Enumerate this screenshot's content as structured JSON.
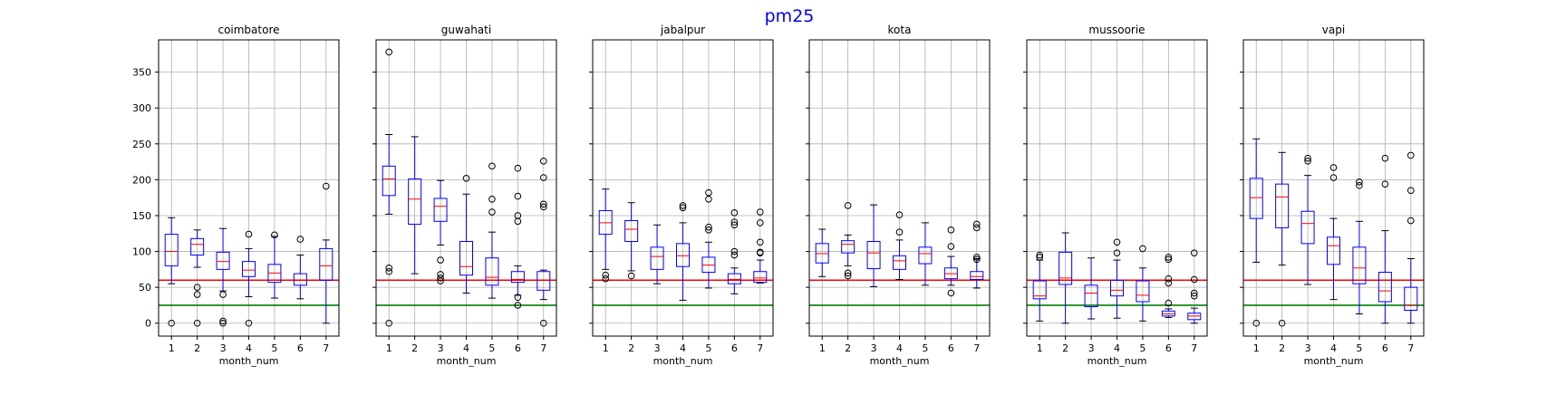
{
  "figure": {
    "title": "pm25",
    "title_color": "#0000ff"
  },
  "chart_data": {
    "type": "boxplot",
    "shared_y": true,
    "ylim": [
      -18,
      395
    ],
    "yticks": [
      0,
      50,
      100,
      150,
      200,
      250,
      300,
      350
    ],
    "xticks": [
      "1",
      "2",
      "3",
      "4",
      "5",
      "6",
      "7"
    ],
    "xlabel": "month_num",
    "grid": true,
    "reference_lines": [
      {
        "y": 60,
        "color": "#ff0000"
      },
      {
        "y": 25,
        "color": "#008000"
      }
    ],
    "colors": {
      "box": "#0000ff",
      "median": "#ff0000",
      "flier": "#000000",
      "grid": "#b0b0b0"
    },
    "panels": [
      {
        "title": "coimbatore",
        "boxes": [
          {
            "month": 1,
            "q1": 80,
            "median": 100,
            "q3": 124,
            "whisker_low": 55,
            "whisker_high": 147,
            "fliers": [
              0
            ]
          },
          {
            "month": 2,
            "q1": 95,
            "median": 110,
            "q3": 118,
            "whisker_low": 78,
            "whisker_high": 130,
            "fliers": [
              50,
              40,
              0
            ]
          },
          {
            "month": 3,
            "q1": 75,
            "median": 86,
            "q3": 99,
            "whisker_low": 45,
            "whisker_high": 132,
            "fliers": [
              40,
              3,
              0
            ]
          },
          {
            "month": 4,
            "q1": 65,
            "median": 74,
            "q3": 86,
            "whisker_low": 37,
            "whisker_high": 104,
            "fliers": [
              124,
              0
            ]
          },
          {
            "month": 5,
            "q1": 57,
            "median": 70,
            "q3": 82,
            "whisker_low": 35,
            "whisker_high": 121,
            "fliers": [
              123
            ]
          },
          {
            "month": 6,
            "q1": 53,
            "median": 60,
            "q3": 69,
            "whisker_low": 34,
            "whisker_high": 95,
            "fliers": [
              117
            ]
          },
          {
            "month": 7,
            "q1": 60,
            "median": 80,
            "q3": 104,
            "whisker_low": 0,
            "whisker_high": 116,
            "fliers": [
              191
            ]
          }
        ]
      },
      {
        "title": "guwahati",
        "boxes": [
          {
            "month": 1,
            "q1": 178,
            "median": 201,
            "q3": 219,
            "whisker_low": 152,
            "whisker_high": 263,
            "fliers": [
              378,
              77,
              72,
              0
            ]
          },
          {
            "month": 2,
            "q1": 138,
            "median": 173,
            "q3": 201,
            "whisker_low": 69,
            "whisker_high": 260,
            "fliers": []
          },
          {
            "month": 3,
            "q1": 142,
            "median": 163,
            "q3": 174,
            "whisker_low": 109,
            "whisker_high": 199,
            "fliers": [
              88,
              68,
              63,
              59
            ]
          },
          {
            "month": 4,
            "q1": 67,
            "median": 79,
            "q3": 114,
            "whisker_low": 42,
            "whisker_high": 180,
            "fliers": [
              202
            ]
          },
          {
            "month": 5,
            "q1": 53,
            "median": 64,
            "q3": 91,
            "whisker_low": 35,
            "whisker_high": 127,
            "fliers": [
              219,
              173,
              155
            ]
          },
          {
            "month": 6,
            "q1": 57,
            "median": 61,
            "q3": 72,
            "whisker_low": 39,
            "whisker_high": 80,
            "fliers": [
              216,
              177,
              150,
              142,
              36,
              25
            ]
          },
          {
            "month": 7,
            "q1": 46,
            "median": 60,
            "q3": 72,
            "whisker_low": 33,
            "whisker_high": 74,
            "fliers": [
              226,
              203,
              166,
              162,
              0
            ]
          }
        ]
      },
      {
        "title": "jabalpur",
        "boxes": [
          {
            "month": 1,
            "q1": 124,
            "median": 140,
            "q3": 157,
            "whisker_low": 75,
            "whisker_high": 187,
            "fliers": [
              67,
              62
            ]
          },
          {
            "month": 2,
            "q1": 114,
            "median": 131,
            "q3": 143,
            "whisker_low": 73,
            "whisker_high": 168,
            "fliers": [
              66
            ]
          },
          {
            "month": 3,
            "q1": 75,
            "median": 93,
            "q3": 106,
            "whisker_low": 55,
            "whisker_high": 137,
            "fliers": []
          },
          {
            "month": 4,
            "q1": 79,
            "median": 94,
            "q3": 111,
            "whisker_low": 32,
            "whisker_high": 140,
            "fliers": [
              164,
              161
            ]
          },
          {
            "month": 5,
            "q1": 71,
            "median": 81,
            "q3": 92,
            "whisker_low": 49,
            "whisker_high": 113,
            "fliers": [
              182,
              173,
              134,
              130
            ]
          },
          {
            "month": 6,
            "q1": 55,
            "median": 61,
            "q3": 69,
            "whisker_low": 41,
            "whisker_high": 77,
            "fliers": [
              154,
              141,
              137,
              100,
              95
            ]
          },
          {
            "month": 7,
            "q1": 57,
            "median": 63,
            "q3": 72,
            "whisker_low": 56,
            "whisker_high": 88,
            "fliers": [
              155,
              140,
              113,
              99,
              98
            ]
          }
        ]
      },
      {
        "title": "kota",
        "boxes": [
          {
            "month": 1,
            "q1": 84,
            "median": 97,
            "q3": 111,
            "whisker_low": 65,
            "whisker_high": 131,
            "fliers": []
          },
          {
            "month": 2,
            "q1": 98,
            "median": 110,
            "q3": 115,
            "whisker_low": 80,
            "whisker_high": 123,
            "fliers": [
              164,
              70,
              66
            ]
          },
          {
            "month": 3,
            "q1": 76,
            "median": 98,
            "q3": 114,
            "whisker_low": 51,
            "whisker_high": 165,
            "fliers": []
          },
          {
            "month": 4,
            "q1": 75,
            "median": 87,
            "q3": 94,
            "whisker_low": 61,
            "whisker_high": 116,
            "fliers": [
              151,
              127
            ]
          },
          {
            "month": 5,
            "q1": 83,
            "median": 97,
            "q3": 106,
            "whisker_low": 53,
            "whisker_high": 140,
            "fliers": []
          },
          {
            "month": 6,
            "q1": 62,
            "median": 69,
            "q3": 77,
            "whisker_low": 53,
            "whisker_high": 93,
            "fliers": [
              130,
              107,
              42
            ]
          },
          {
            "month": 7,
            "q1": 61,
            "median": 65,
            "q3": 72,
            "whisker_low": 49,
            "whisker_high": 90,
            "fliers": [
              138,
              133,
              92,
              89
            ]
          }
        ]
      },
      {
        "title": "mussoorie",
        "boxes": [
          {
            "month": 1,
            "q1": 34,
            "median": 38,
            "q3": 59,
            "whisker_low": 3,
            "whisker_high": 88,
            "fliers": [
              95,
              92
            ]
          },
          {
            "month": 2,
            "q1": 54,
            "median": 63,
            "q3": 99,
            "whisker_low": 0,
            "whisker_high": 126,
            "fliers": []
          },
          {
            "month": 3,
            "q1": 23,
            "median": 42,
            "q3": 53,
            "whisker_low": 6,
            "whisker_high": 91,
            "fliers": []
          },
          {
            "month": 4,
            "q1": 38,
            "median": 46,
            "q3": 60,
            "whisker_low": 7,
            "whisker_high": 88,
            "fliers": [
              113,
              98
            ]
          },
          {
            "month": 5,
            "q1": 30,
            "median": 39,
            "q3": 59,
            "whisker_low": 3,
            "whisker_high": 77,
            "fliers": [
              104
            ]
          },
          {
            "month": 6,
            "q1": 10,
            "median": 13,
            "q3": 17,
            "whisker_low": 8,
            "whisker_high": 20,
            "fliers": [
              92,
              89,
              62,
              56,
              28
            ]
          },
          {
            "month": 7,
            "q1": 5,
            "median": 10,
            "q3": 14,
            "whisker_low": 0,
            "whisker_high": 21,
            "fliers": [
              98,
              61,
              42,
              38
            ]
          }
        ]
      },
      {
        "title": "vapi",
        "boxes": [
          {
            "month": 1,
            "q1": 146,
            "median": 175,
            "q3": 202,
            "whisker_low": 85,
            "whisker_high": 257,
            "fliers": [
              0
            ]
          },
          {
            "month": 2,
            "q1": 133,
            "median": 176,
            "q3": 194,
            "whisker_low": 81,
            "whisker_high": 238,
            "fliers": [
              0
            ]
          },
          {
            "month": 3,
            "q1": 111,
            "median": 139,
            "q3": 156,
            "whisker_low": 54,
            "whisker_high": 206,
            "fliers": [
              230,
              226
            ]
          },
          {
            "month": 4,
            "q1": 82,
            "median": 108,
            "q3": 120,
            "whisker_low": 33,
            "whisker_high": 146,
            "fliers": [
              217,
              203
            ]
          },
          {
            "month": 5,
            "q1": 55,
            "median": 77,
            "q3": 106,
            "whisker_low": 13,
            "whisker_high": 142,
            "fliers": [
              197,
              192
            ]
          },
          {
            "month": 6,
            "q1": 30,
            "median": 45,
            "q3": 71,
            "whisker_low": 0,
            "whisker_high": 129,
            "fliers": [
              230,
              194
            ]
          },
          {
            "month": 7,
            "q1": 18,
            "median": 25,
            "q3": 50,
            "whisker_low": 0,
            "whisker_high": 90,
            "fliers": [
              234,
              185,
              143
            ]
          }
        ]
      }
    ]
  }
}
